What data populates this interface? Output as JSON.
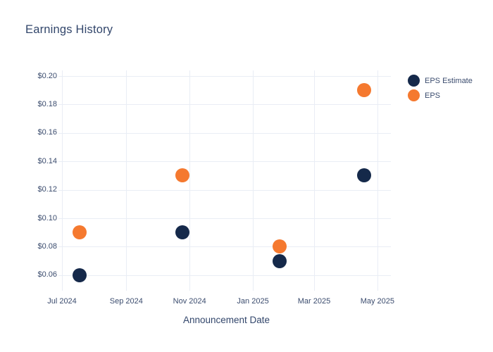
{
  "chart_data": {
    "type": "scatter",
    "title": "Earnings History",
    "xlabel": "Announcement Date",
    "ylabel": "",
    "grid": true,
    "legend_position": "top-right-outside",
    "background_color": "#ffffff",
    "gridline_color": "#e9edf5",
    "text_color": "#32466b",
    "x_axis": {
      "range": [
        "2024-07-01",
        "2025-05-14"
      ],
      "ticks": [
        {
          "date": "2024-07-01",
          "label": "Jul 2024"
        },
        {
          "date": "2024-09-01",
          "label": "Sep 2024"
        },
        {
          "date": "2024-11-01",
          "label": "Nov 2024"
        },
        {
          "date": "2025-01-01",
          "label": "Jan 2025"
        },
        {
          "date": "2025-03-01",
          "label": "Mar 2025"
        },
        {
          "date": "2025-05-01",
          "label": "May 2025"
        }
      ]
    },
    "y_axis": {
      "range": [
        0.052,
        0.204
      ],
      "ticks": [
        {
          "value": 0.06,
          "label": "$0.06"
        },
        {
          "value": 0.08,
          "label": "$0.08"
        },
        {
          "value": 0.1,
          "label": "$0.10"
        },
        {
          "value": 0.12,
          "label": "$0.12"
        },
        {
          "value": 0.14,
          "label": "$0.14"
        },
        {
          "value": 0.16,
          "label": "$0.16"
        },
        {
          "value": 0.18,
          "label": "$0.18"
        },
        {
          "value": 0.2,
          "label": "$0.20"
        }
      ]
    },
    "series": [
      {
        "name": "EPS Estimate",
        "color": "#15294a",
        "points": [
          {
            "date": "2024-07-18",
            "value": 0.06
          },
          {
            "date": "2024-10-25",
            "value": 0.09
          },
          {
            "date": "2025-01-27",
            "value": 0.07
          },
          {
            "date": "2025-04-18",
            "value": 0.13
          }
        ]
      },
      {
        "name": "EPS",
        "color": "#f5792f",
        "points": [
          {
            "date": "2024-07-18",
            "value": 0.09
          },
          {
            "date": "2024-10-25",
            "value": 0.13
          },
          {
            "date": "2025-01-27",
            "value": 0.08
          },
          {
            "date": "2025-04-18",
            "value": 0.19
          }
        ]
      }
    ]
  }
}
